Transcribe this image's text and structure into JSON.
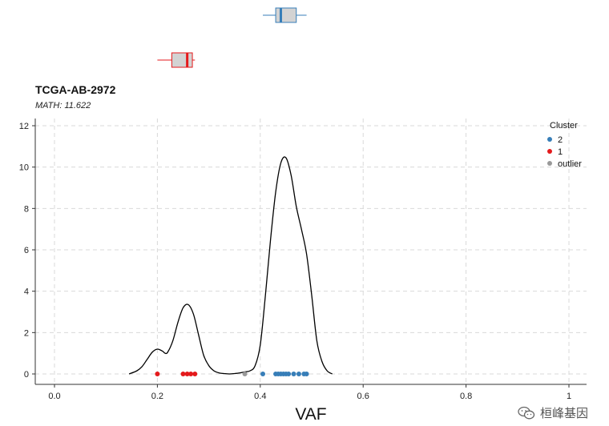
{
  "chart_data": {
    "type": "line",
    "title": "TCGA-AB-2972",
    "subtitle": "MATH: 11.622",
    "xlabel": "VAF",
    "ylabel": "",
    "xlim": [
      0.0,
      1.0
    ],
    "ylim": [
      0,
      12
    ],
    "x_ticks": [
      "0.0",
      "0.2",
      "0.4",
      "0.6",
      "0.8",
      "1"
    ],
    "y_ticks": [
      "0",
      "2",
      "4",
      "6",
      "8",
      "10",
      "12"
    ],
    "grid": true,
    "legend_position": "top-right",
    "legend_title": "Cluster",
    "density": {
      "x": [
        0.145,
        0.16,
        0.17,
        0.18,
        0.19,
        0.2,
        0.21,
        0.215,
        0.22,
        0.23,
        0.24,
        0.25,
        0.26,
        0.27,
        0.28,
        0.29,
        0.3,
        0.31,
        0.32,
        0.33,
        0.34,
        0.35,
        0.36,
        0.37,
        0.38,
        0.39,
        0.4,
        0.41,
        0.42,
        0.43,
        0.44,
        0.45,
        0.46,
        0.47,
        0.48,
        0.49,
        0.5,
        0.51,
        0.52,
        0.53,
        0.54
      ],
      "y": [
        0.0,
        0.15,
        0.35,
        0.7,
        1.05,
        1.2,
        1.1,
        1.0,
        1.05,
        1.6,
        2.5,
        3.2,
        3.35,
        2.9,
        1.9,
        0.9,
        0.4,
        0.15,
        0.05,
        0.02,
        0.0,
        0.02,
        0.05,
        0.1,
        0.15,
        0.4,
        1.4,
        3.8,
        6.5,
        8.8,
        10.2,
        10.45,
        9.6,
        8.1,
        7.0,
        5.8,
        3.8,
        1.6,
        0.6,
        0.15,
        0.0
      ]
    },
    "series": [
      {
        "name": "2",
        "color": "#377EB8",
        "x": [
          0.405,
          0.43,
          0.435,
          0.44,
          0.445,
          0.45,
          0.455,
          0.465,
          0.475,
          0.485,
          0.49
        ]
      },
      {
        "name": "1",
        "color": "#E41A1C",
        "x": [
          0.2,
          0.25,
          0.258,
          0.265,
          0.273
        ]
      },
      {
        "name": "outlier",
        "color": "#999999",
        "x": [
          0.37
        ]
      }
    ],
    "boxplots": [
      {
        "cluster": "2",
        "color": "#377EB8",
        "fill": "#d3d3d3",
        "whisker_low": 0.405,
        "q1": 0.43,
        "median": 0.44,
        "q3": 0.47,
        "whisker_high": 0.49
      },
      {
        "cluster": "1",
        "color": "#E41A1C",
        "fill": "#d3d3d3",
        "whisker_low": 0.2,
        "q1": 0.228,
        "median": 0.258,
        "q3": 0.268,
        "whisker_high": 0.273
      }
    ]
  },
  "watermark": {
    "text": "桓峰基因",
    "icon": "wechat-icon"
  }
}
